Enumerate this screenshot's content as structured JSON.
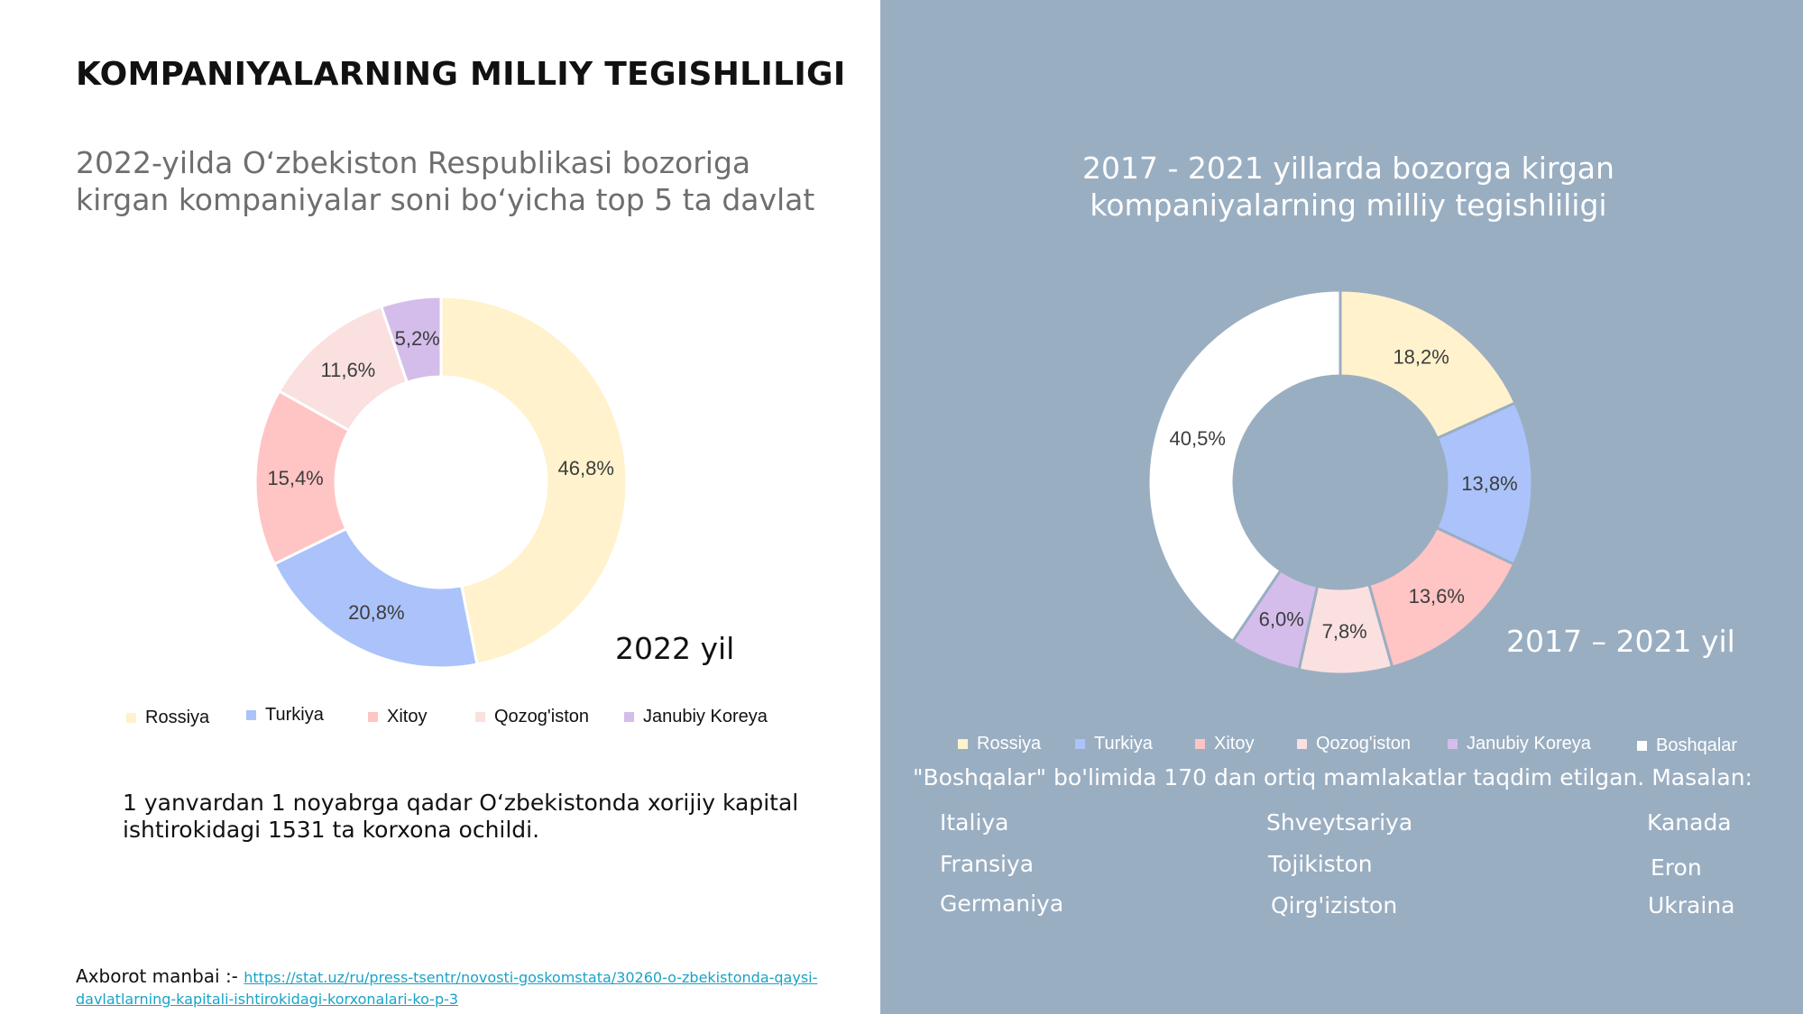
{
  "left_panel": {
    "title": "KOMPANIYALARNING MILLIY TEGISHLILIGI",
    "subtitle_line1": "2022-yilda O‘zbekiston Respublikasi bozoriga",
    "subtitle_line2": "kirgan kompaniyalar soni bo‘yicha top 5 ta davlat",
    "year_label": "2022 yil",
    "note_line1": "1 yanvardan 1 noyabrga qadar O‘zbekistonda xorijiy kapital",
    "note_line2": "ishtirokidagi 1531 ta korxona ochildi.",
    "source_label": "Axborot manbai :-",
    "source_link": "https://stat.uz/ru/press-tsentr/novosti-goskomstata/30260-o-zbekistonda-qaysi-davlatlarning-kapitali-ishtirokidagi-korxonalari-ko-p-3"
  },
  "right_panel": {
    "title_line1": "2017 - 2021 yillarda bozorga kirgan",
    "title_line2": "kompaniyalarning milliy tegishliligi",
    "year_label": "2017 – 2021 yil",
    "others_note": "\"Boshqalar\" bo'limida 170 dan ortiq mamlakatlar taqdim etilgan. Masalan:",
    "examples": [
      "Italiya",
      "Fransiya",
      "Germaniya",
      "Shveytsariya",
      "Tojikiston",
      "Qirg'iziston",
      "Kanada",
      "Eron",
      "Ukraina"
    ]
  },
  "colors": {
    "right_background": "#9aaec2",
    "Rossiya": "#fff2cc",
    "Turkiya": "#abc3fa",
    "Xitoy": "#ffc4c4",
    "Qozog'iston": "#fbe0e0",
    "Janubiy Koreya": "#d4bdeb",
    "Boshqalar": "#ffffff"
  },
  "chart_data": [
    {
      "type": "pie",
      "variant": "donut",
      "categories": [
        "Rossiya",
        "Turkiya",
        "Xitoy",
        "Qozog'iston",
        "Janubiy Koreya"
      ],
      "values": [
        46.8,
        20.8,
        15.4,
        11.6,
        5.2
      ],
      "labels": [
        "46,8%",
        "20,8%",
        "15,4%",
        "11,6%",
        "5,2%"
      ],
      "legend": [
        "Rossiya",
        "Turkiya",
        "Xitoy",
        "Qozog'iston",
        "Janubiy Koreya"
      ],
      "legend_position": "bottom"
    },
    {
      "type": "pie",
      "variant": "donut",
      "categories": [
        "Rossiya",
        "Turkiya",
        "Xitoy",
        "Qozog'iston",
        "Janubiy Koreya",
        "Boshqalar"
      ],
      "values": [
        18.2,
        13.8,
        13.6,
        7.8,
        6.0,
        40.5
      ],
      "labels": [
        "18,2%",
        "13,8%",
        "13,6%",
        "7,8%",
        "6,0%",
        "40,5%"
      ],
      "legend": [
        "Rossiya",
        "Turkiya",
        "Xitoy",
        "Qozog'iston",
        "Janubiy Koreya",
        "Boshqalar"
      ],
      "legend_position": "bottom"
    }
  ]
}
